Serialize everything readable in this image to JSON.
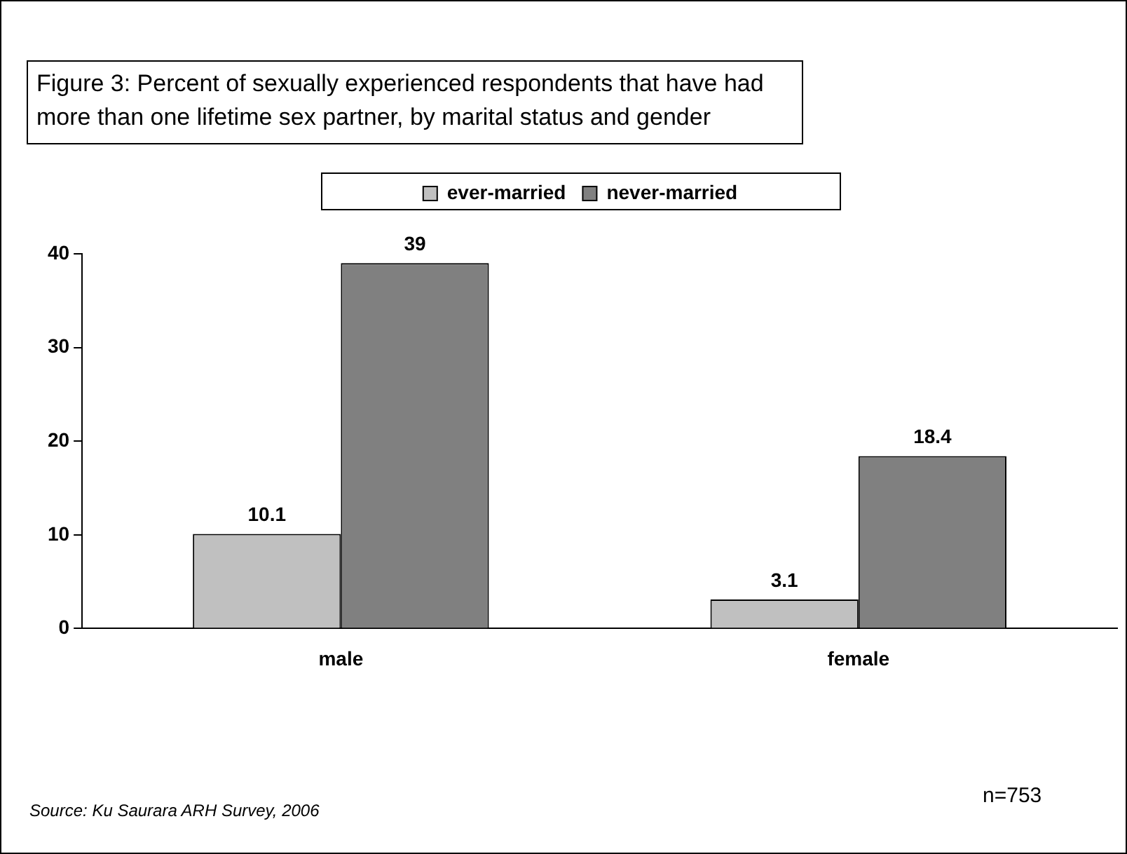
{
  "chart_data": {
    "type": "bar",
    "title": "Figure 3: Percent of sexually experienced respondents that have had more than one lifetime sex partner, by marital status and gender",
    "categories": [
      "male",
      "female"
    ],
    "series": [
      {
        "name": "ever-married",
        "color": "#c0c0c0",
        "values": [
          10.1,
          3.1
        ]
      },
      {
        "name": "never-married",
        "color": "#808080",
        "values": [
          39,
          18.4
        ]
      }
    ],
    "ylim": [
      0,
      40
    ],
    "yticks": [
      0,
      10,
      20,
      30,
      40
    ],
    "grid": false,
    "legend": "top",
    "data_labels": true,
    "annotations": [
      "Source: Ku Saurara ARH Survey, 2006",
      "n=753"
    ]
  }
}
